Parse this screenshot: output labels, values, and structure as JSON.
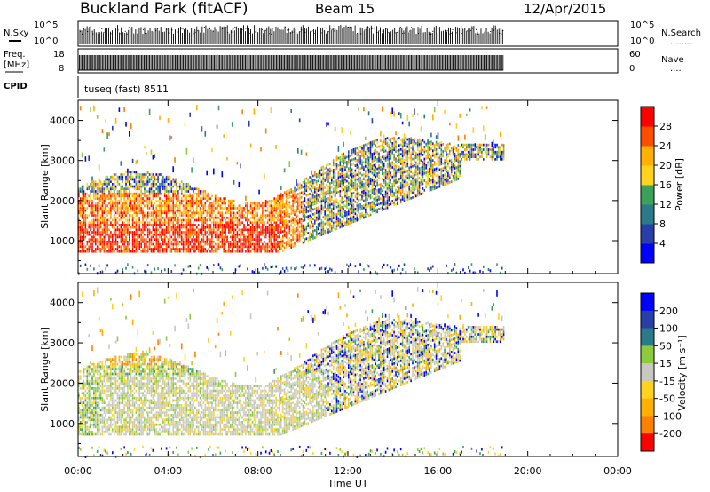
{
  "header": {
    "station": "Buckland Park (fitACF)",
    "beam": "Beam 15",
    "date": "12/Apr/2015"
  },
  "top_strips": {
    "nsky_label": "N.Sky",
    "nsearch_label": "N.Search",
    "nsearch_marker": "........",
    "noise_tick_high": "10^5",
    "noise_tick_low": "10^0",
    "freq_label_1": "Freq.",
    "freq_label_2": "[MHz]",
    "freq_tick_high": "18",
    "freq_tick_low": "8",
    "nave_label": "Nave",
    "nave_marker": "....",
    "nave_tick_high": "60",
    "nave_tick_low": "0",
    "cpid_label": "CPID",
    "cpid_value": "ltuseq (fast) 8511"
  },
  "colors": {
    "power_scale": [
      "#0000ff",
      "#2a3ea8",
      "#2b7a8a",
      "#3aa05a",
      "#8ccc3c",
      "#ffd21e",
      "#ffb000",
      "#ff8000",
      "#ff4d00",
      "#ff0000"
    ],
    "velocity_scale": [
      "#0000ff",
      "#2a3ea8",
      "#2b7a8a",
      "#3aa05a",
      "#8ccc3c",
      "#c8c8c0",
      "#ffd21e",
      "#ffb000",
      "#ff8000",
      "#ff4d00",
      "#ff0000"
    ]
  },
  "chart_data": [
    {
      "type": "heatmap",
      "parameter": "power",
      "ylabel": "Slant Range [km]",
      "xlabel": "",
      "yticks": [
        1000,
        2000,
        3000,
        4000
      ],
      "ylim": [
        180,
        4500
      ],
      "xlim": [
        "00:00",
        "24:00"
      ],
      "colorbar_label": "Power [dB]",
      "colorbar_ticks": [
        "4",
        "8",
        "12",
        "16",
        "20",
        "24",
        "28"
      ],
      "colorbar_range": [
        0,
        32
      ],
      "data_end_time": "18:55"
    },
    {
      "type": "heatmap",
      "parameter": "velocity",
      "ylabel": "Slant Range [km]",
      "xlabel": "Time UT",
      "yticks": [
        1000,
        2000,
        3000,
        4000
      ],
      "ylim": [
        180,
        4500
      ],
      "xlim": [
        "00:00",
        "24:00"
      ],
      "xticks": [
        "00:00",
        "04:00",
        "08:00",
        "12:00",
        "16:00",
        "20:00",
        "00:00"
      ],
      "colorbar_label": "Velocity [m s⁻¹]",
      "colorbar_ticks": [
        "200",
        "100",
        "50",
        "15",
        "-15",
        "-50",
        "-100",
        "-200"
      ],
      "data_end_time": "18:55"
    }
  ]
}
